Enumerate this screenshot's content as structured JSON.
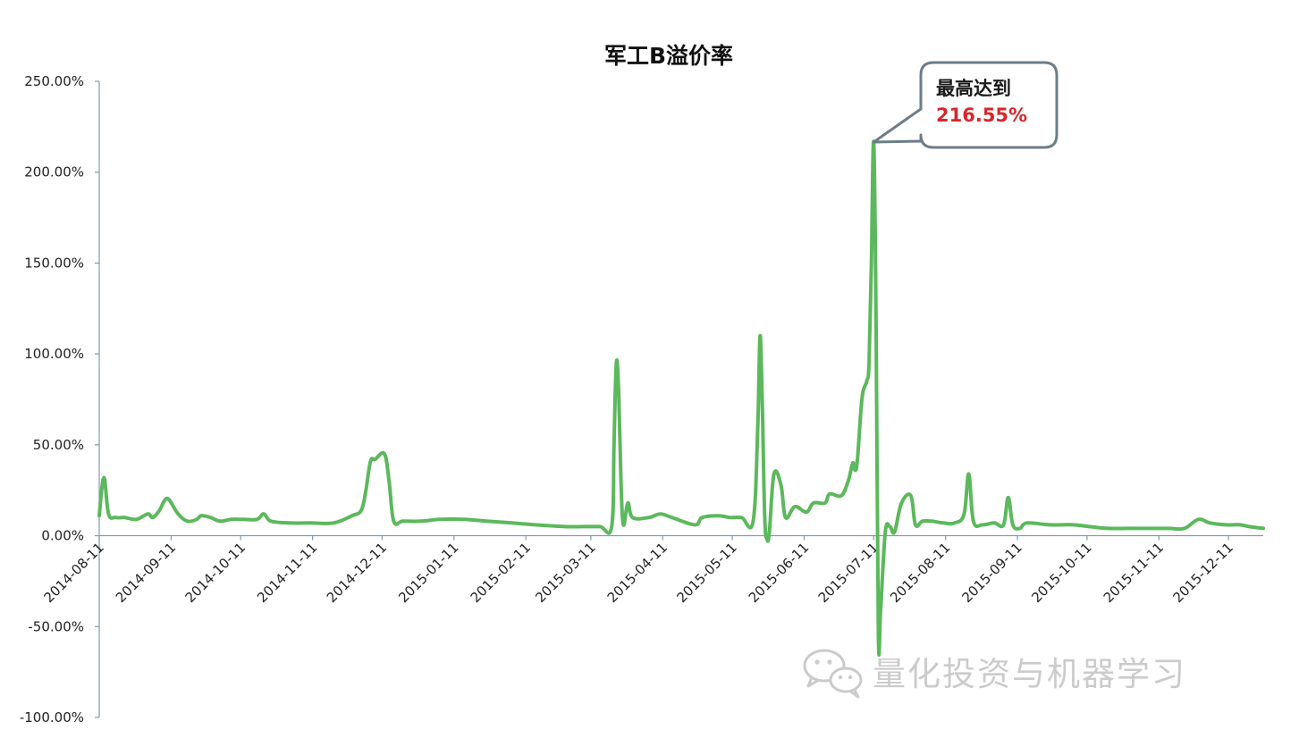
{
  "chart_data": {
    "type": "line",
    "title": "军工B溢价率",
    "xlabel": "",
    "ylabel": "",
    "ylim": [
      -1.0,
      2.5
    ],
    "yticks": [
      -1.0,
      -0.5,
      0.0,
      0.5,
      1.0,
      1.5,
      2.0,
      2.5
    ],
    "ytick_labels": [
      "-100.00%",
      "-50.00%",
      "0.00%",
      "50.00%",
      "100.00%",
      "150.00%",
      "200.00%",
      "250.00%"
    ],
    "xlim": [
      "2014-08-11",
      "2015-12-26"
    ],
    "xtick_labels": [
      "2014-08-11",
      "2014-09-11",
      "2014-10-11",
      "2014-11-11",
      "2014-12-11",
      "2015-01-11",
      "2015-02-11",
      "2015-03-11",
      "2015-04-11",
      "2015-05-11",
      "2015-06-11",
      "2015-07-11",
      "2015-08-11",
      "2015-09-11",
      "2015-10-11",
      "2015-11-11",
      "2015-12-11"
    ],
    "grid": false,
    "legend": "none",
    "series": [
      {
        "color": "#5cb85c",
        "points": [
          [
            "2014-08-11",
            0.11
          ],
          [
            "2014-08-13",
            0.32
          ],
          [
            "2014-08-15",
            0.12
          ],
          [
            "2014-08-18",
            0.1
          ],
          [
            "2014-08-22",
            0.1
          ],
          [
            "2014-08-27",
            0.09
          ],
          [
            "2014-09-01",
            0.12
          ],
          [
            "2014-09-03",
            0.1
          ],
          [
            "2014-09-06",
            0.14
          ],
          [
            "2014-09-08",
            0.19
          ],
          [
            "2014-09-10",
            0.2
          ],
          [
            "2014-09-14",
            0.12
          ],
          [
            "2014-09-18",
            0.08
          ],
          [
            "2014-09-22",
            0.09
          ],
          [
            "2014-09-24",
            0.11
          ],
          [
            "2014-09-28",
            0.1
          ],
          [
            "2014-10-02",
            0.08
          ],
          [
            "2014-10-07",
            0.09
          ],
          [
            "2014-10-12",
            0.09
          ],
          [
            "2014-10-18",
            0.09
          ],
          [
            "2014-10-21",
            0.12
          ],
          [
            "2014-10-24",
            0.08
          ],
          [
            "2014-11-01",
            0.07
          ],
          [
            "2014-11-10",
            0.07
          ],
          [
            "2014-11-20",
            0.07
          ],
          [
            "2014-11-28",
            0.11
          ],
          [
            "2014-12-02",
            0.14
          ],
          [
            "2014-12-04",
            0.25
          ],
          [
            "2014-12-06",
            0.41
          ],
          [
            "2014-12-08",
            0.42
          ],
          [
            "2014-12-12",
            0.45
          ],
          [
            "2014-12-14",
            0.3
          ],
          [
            "2014-12-16",
            0.08
          ],
          [
            "2014-12-20",
            0.08
          ],
          [
            "2014-12-28",
            0.08
          ],
          [
            "2015-01-05",
            0.09
          ],
          [
            "2015-01-15",
            0.09
          ],
          [
            "2015-01-25",
            0.08
          ],
          [
            "2015-02-05",
            0.07
          ],
          [
            "2015-02-15",
            0.06
          ],
          [
            "2015-02-28",
            0.05
          ],
          [
            "2015-03-08",
            0.05
          ],
          [
            "2015-03-15",
            0.05
          ],
          [
            "2015-03-20",
            0.05
          ],
          [
            "2015-03-21",
            0.5
          ],
          [
            "2015-03-22",
            0.95
          ],
          [
            "2015-03-23",
            0.8
          ],
          [
            "2015-03-24",
            0.3
          ],
          [
            "2015-03-25",
            0.06
          ],
          [
            "2015-03-27",
            0.18
          ],
          [
            "2015-03-29",
            0.1
          ],
          [
            "2015-04-05",
            0.1
          ],
          [
            "2015-04-10",
            0.12
          ],
          [
            "2015-04-15",
            0.1
          ],
          [
            "2015-04-25",
            0.06
          ],
          [
            "2015-04-28",
            0.1
          ],
          [
            "2015-05-05",
            0.11
          ],
          [
            "2015-05-10",
            0.1
          ],
          [
            "2015-05-15",
            0.1
          ],
          [
            "2015-05-20",
            0.08
          ],
          [
            "2015-05-22",
            0.6
          ],
          [
            "2015-05-23",
            1.1
          ],
          [
            "2015-05-24",
            0.7
          ],
          [
            "2015-05-25",
            0.1
          ],
          [
            "2015-05-26",
            -0.02
          ],
          [
            "2015-05-27",
            0.02
          ],
          [
            "2015-05-29",
            0.34
          ],
          [
            "2015-06-01",
            0.28
          ],
          [
            "2015-06-03",
            0.1
          ],
          [
            "2015-06-07",
            0.16
          ],
          [
            "2015-06-12",
            0.13
          ],
          [
            "2015-06-15",
            0.18
          ],
          [
            "2015-06-20",
            0.18
          ],
          [
            "2015-06-22",
            0.23
          ],
          [
            "2015-06-27",
            0.22
          ],
          [
            "2015-06-30",
            0.3
          ],
          [
            "2015-07-02",
            0.4
          ],
          [
            "2015-07-03",
            0.36
          ],
          [
            "2015-07-04",
            0.42
          ],
          [
            "2015-07-06",
            0.76
          ],
          [
            "2015-07-08",
            0.85
          ],
          [
            "2015-07-09",
            0.95
          ],
          [
            "2015-07-10",
            1.5
          ],
          [
            "2015-07-11",
            2.1655
          ],
          [
            "2015-07-12",
            1.2
          ],
          [
            "2015-07-13",
            -0.54
          ],
          [
            "2015-07-14",
            -0.4
          ],
          [
            "2015-07-16",
            0.02
          ],
          [
            "2015-07-18",
            0.05
          ],
          [
            "2015-07-20",
            0.02
          ],
          [
            "2015-07-23",
            0.18
          ],
          [
            "2015-07-27",
            0.22
          ],
          [
            "2015-07-29",
            0.06
          ],
          [
            "2015-08-01",
            0.08
          ],
          [
            "2015-08-05",
            0.08
          ],
          [
            "2015-08-10",
            0.07
          ],
          [
            "2015-08-15",
            0.07
          ],
          [
            "2015-08-19",
            0.12
          ],
          [
            "2015-08-21",
            0.34
          ],
          [
            "2015-08-23",
            0.08
          ],
          [
            "2015-08-27",
            0.06
          ],
          [
            "2015-09-01",
            0.07
          ],
          [
            "2015-09-05",
            0.06
          ],
          [
            "2015-09-07",
            0.21
          ],
          [
            "2015-09-09",
            0.06
          ],
          [
            "2015-09-12",
            0.04
          ],
          [
            "2015-09-15",
            0.07
          ],
          [
            "2015-09-25",
            0.06
          ],
          [
            "2015-10-05",
            0.06
          ],
          [
            "2015-10-12",
            0.05
          ],
          [
            "2015-10-20",
            0.04
          ],
          [
            "2015-10-28",
            0.04
          ],
          [
            "2015-11-05",
            0.04
          ],
          [
            "2015-11-15",
            0.04
          ],
          [
            "2015-11-22",
            0.04
          ],
          [
            "2015-11-28",
            0.09
          ],
          [
            "2015-12-03",
            0.07
          ],
          [
            "2015-12-10",
            0.06
          ],
          [
            "2015-12-16",
            0.06
          ],
          [
            "2015-12-20",
            0.05
          ],
          [
            "2015-12-26",
            0.04
          ]
        ]
      }
    ],
    "annotations": [
      {
        "point": [
          "2015-07-11",
          2.1655
        ],
        "line1": "最高达到",
        "line2": "216.55%",
        "line2_color": "#d7262b"
      }
    ]
  },
  "watermark": {
    "text": "量化投资与机器学习",
    "icon": "wechat-icon"
  },
  "colors": {
    "line": "#5cb85c",
    "axis": "#7f9bb0",
    "callout_border": "#6c7d88",
    "highlight": "#d7262b",
    "watermark": "#c9c9c9"
  }
}
